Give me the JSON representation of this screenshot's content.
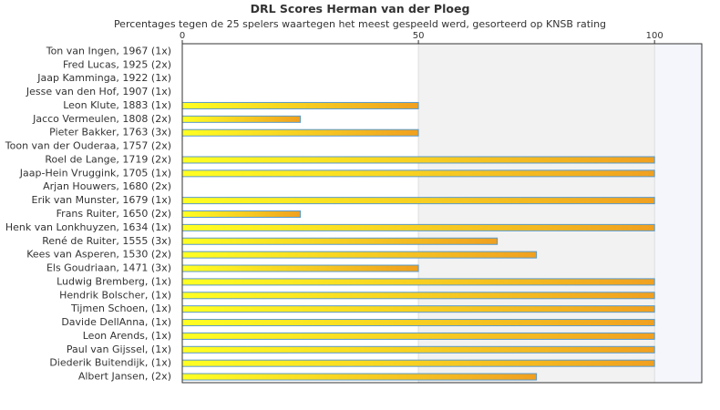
{
  "chart_data": {
    "type": "bar",
    "orientation": "horizontal",
    "title": "DRL Scores Herman van der Ploeg",
    "subtitle": "Percentages tegen de 25 spelers waartegen het meest gespeeld werd, gesorteerd op KNSB rating",
    "xlim": [
      0,
      110
    ],
    "x_ticks": [
      0,
      50,
      100
    ],
    "categories": [
      "Ton van Ingen, 1967 (1x)",
      "Fred Lucas, 1925 (2x)",
      "Jaap Kamminga, 1922 (1x)",
      "Jesse van den Hof, 1907 (1x)",
      "Leon Klute, 1883 (1x)",
      "Jacco Vermeulen, 1808 (2x)",
      "Pieter Bakker, 1763 (3x)",
      "Toon van der Ouderaa, 1757 (2x)",
      "Roel de Lange, 1719 (2x)",
      "Jaap-Hein Vruggink, 1705 (1x)",
      "Arjan Houwers, 1680 (2x)",
      "Erik van Munster, 1679 (1x)",
      "Frans Ruiter, 1650 (2x)",
      "Henk van Lonkhuyzen, 1634 (1x)",
      "René de Ruiter, 1555 (3x)",
      "Kees van Asperen, 1530 (2x)",
      "Els Goudriaan, 1471 (3x)",
      "Ludwig Bremberg,  (1x)",
      "Hendrik Bolscher,  (1x)",
      "Tijmen Schoen,  (1x)",
      "Davide DellAnna,  (1x)",
      "Leon Arends,  (1x)",
      "Paul van Gijssel,  (1x)",
      "Diederik Buitendijk,  (1x)",
      "Albert Jansen,  (2x)"
    ],
    "values": [
      0,
      0,
      0,
      0,
      50,
      25,
      50,
      0,
      100,
      100,
      0,
      100,
      25,
      100,
      66.7,
      75,
      50,
      100,
      100,
      100,
      100,
      100,
      100,
      100,
      75
    ],
    "colors": {
      "bar_start": "#ffff22",
      "bar_end": "#f0a020",
      "bar_border": "#5a9acb",
      "band_mid": "#f2f2f2",
      "band_right": "#f4f6fc",
      "grid": "#dddddd",
      "axis": "#333333"
    },
    "grid": true,
    "legend": "none"
  }
}
